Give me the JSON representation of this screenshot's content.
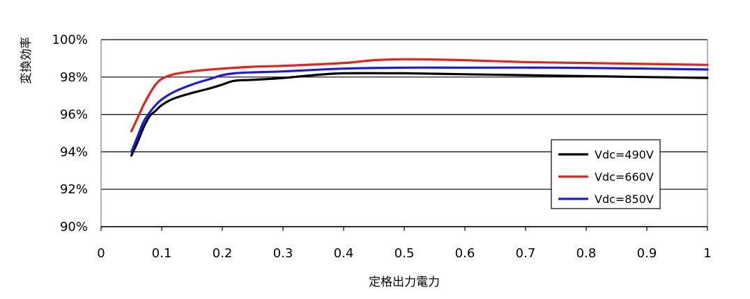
{
  "chart_data": {
    "type": "line",
    "title": "",
    "xlabel": "定格出力電力",
    "ylabel": "変換効率",
    "xlim": [
      0,
      1
    ],
    "ylim": [
      90,
      100
    ],
    "grid": {
      "horizontal": true,
      "vertical": false
    },
    "legend_position": "bottom-right",
    "x_ticks": [
      "0",
      "0.1",
      "0.2",
      "0.3",
      "0.4",
      "0.5",
      "0.6",
      "0.7",
      "0.8",
      "0.9",
      "1"
    ],
    "y_ticks": [
      "90%",
      "92%",
      "94%",
      "96%",
      "98%",
      "100%"
    ],
    "series": [
      {
        "name": "Vdc=490V",
        "color": "#000000",
        "points": [
          [
            0.05,
            93.8
          ],
          [
            0.06,
            94.5
          ],
          [
            0.07,
            95.3
          ],
          [
            0.08,
            95.9
          ],
          [
            0.09,
            96.2
          ],
          [
            0.1,
            96.5
          ],
          [
            0.12,
            96.85
          ],
          [
            0.15,
            97.15
          ],
          [
            0.18,
            97.4
          ],
          [
            0.2,
            97.6
          ],
          [
            0.22,
            97.8
          ],
          [
            0.25,
            97.85
          ],
          [
            0.3,
            97.95
          ],
          [
            0.35,
            98.1
          ],
          [
            0.4,
            98.2
          ],
          [
            0.5,
            98.2
          ],
          [
            0.6,
            98.15
          ],
          [
            0.7,
            98.1
          ],
          [
            0.8,
            98.05
          ],
          [
            0.9,
            98.0
          ],
          [
            1.0,
            97.95
          ]
        ]
      },
      {
        "name": "Vdc=660V",
        "color": "#e8201a",
        "points": [
          [
            0.05,
            95.1
          ],
          [
            0.06,
            95.8
          ],
          [
            0.07,
            96.5
          ],
          [
            0.08,
            97.1
          ],
          [
            0.09,
            97.6
          ],
          [
            0.1,
            97.9
          ],
          [
            0.12,
            98.15
          ],
          [
            0.15,
            98.3
          ],
          [
            0.18,
            98.4
          ],
          [
            0.2,
            98.45
          ],
          [
            0.25,
            98.55
          ],
          [
            0.3,
            98.6
          ],
          [
            0.4,
            98.75
          ],
          [
            0.45,
            98.9
          ],
          [
            0.5,
            98.95
          ],
          [
            0.6,
            98.9
          ],
          [
            0.7,
            98.8
          ],
          [
            0.8,
            98.75
          ],
          [
            0.9,
            98.7
          ],
          [
            1.0,
            98.65
          ]
        ]
      },
      {
        "name": "Vdc=850V",
        "color": "#1a1ae6",
        "points": [
          [
            0.05,
            94.0
          ],
          [
            0.06,
            94.8
          ],
          [
            0.07,
            95.6
          ],
          [
            0.08,
            96.1
          ],
          [
            0.09,
            96.5
          ],
          [
            0.1,
            96.8
          ],
          [
            0.12,
            97.2
          ],
          [
            0.15,
            97.6
          ],
          [
            0.18,
            97.9
          ],
          [
            0.2,
            98.1
          ],
          [
            0.22,
            98.2
          ],
          [
            0.25,
            98.25
          ],
          [
            0.3,
            98.3
          ],
          [
            0.4,
            98.45
          ],
          [
            0.5,
            98.5
          ],
          [
            0.6,
            98.5
          ],
          [
            0.75,
            98.5
          ],
          [
            0.9,
            98.45
          ],
          [
            1.0,
            98.4
          ]
        ]
      }
    ]
  }
}
